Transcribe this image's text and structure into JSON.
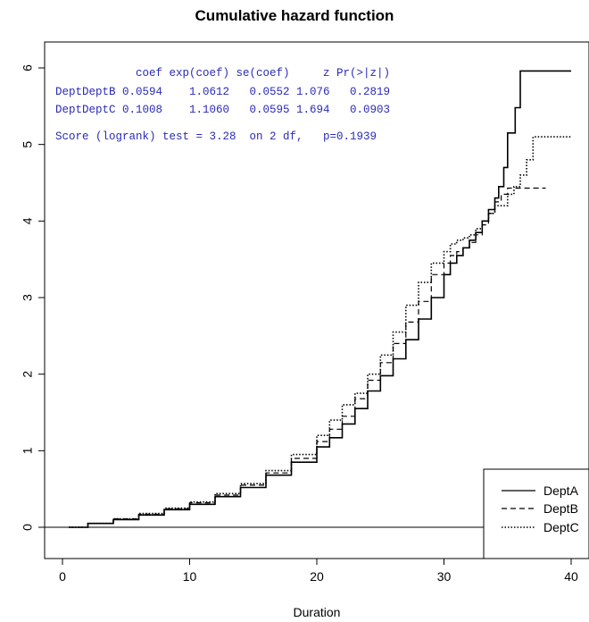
{
  "chart_data": {
    "type": "line",
    "title": "Cumulative hazard function",
    "xlabel": "Duration",
    "ylabel": "",
    "xlim": [
      0,
      40
    ],
    "ylim": [
      0,
      6
    ],
    "xticks": [
      "0",
      "10",
      "20",
      "30",
      "40"
    ],
    "yticks": [
      "0",
      "1",
      "2",
      "3",
      "4",
      "5",
      "6"
    ],
    "reference_line_y": 0,
    "series": [
      {
        "name": "DeptA",
        "line_style": "solid",
        "x": [
          0.5,
          2,
          4,
          6,
          8,
          10,
          12,
          14,
          16,
          18,
          20,
          21,
          22,
          23,
          24,
          25,
          26,
          27,
          28,
          29,
          30,
          30.5,
          31,
          31.5,
          32,
          32.5,
          33,
          33.5,
          34,
          34.3,
          34.7,
          35,
          35.6,
          36,
          40
        ],
        "y": [
          0.0,
          0.05,
          0.1,
          0.16,
          0.23,
          0.3,
          0.4,
          0.52,
          0.68,
          0.85,
          1.05,
          1.17,
          1.35,
          1.55,
          1.78,
          1.98,
          2.2,
          2.45,
          2.72,
          3.0,
          3.3,
          3.45,
          3.55,
          3.65,
          3.75,
          3.85,
          4.0,
          4.15,
          4.3,
          4.45,
          4.7,
          5.15,
          5.48,
          5.96,
          5.96
        ]
      },
      {
        "name": "DeptB",
        "line_style": "dashed",
        "x": [
          0.5,
          2,
          4,
          6,
          8,
          10,
          12,
          14,
          16,
          18,
          20,
          21,
          22,
          23,
          24,
          25,
          26,
          27,
          28,
          29,
          30,
          30.5,
          31,
          31.5,
          32,
          32.5,
          33,
          33.5,
          34,
          34.5,
          35,
          37,
          38
        ],
        "y": [
          0.0,
          0.05,
          0.11,
          0.17,
          0.24,
          0.32,
          0.42,
          0.55,
          0.71,
          0.9,
          1.12,
          1.28,
          1.45,
          1.68,
          1.92,
          2.15,
          2.4,
          2.68,
          2.95,
          3.3,
          3.45,
          3.55,
          3.6,
          3.65,
          3.72,
          3.82,
          3.95,
          4.1,
          4.25,
          4.35,
          4.43,
          4.43,
          4.43
        ]
      },
      {
        "name": "DeptC",
        "line_style": "dotted",
        "x": [
          0.5,
          2,
          4,
          6,
          8,
          10,
          12,
          14,
          16,
          18,
          20,
          21,
          22,
          23,
          24,
          25,
          26,
          27,
          28,
          29,
          30,
          30.5,
          31,
          31.5,
          32,
          32.5,
          33,
          33.5,
          34,
          35,
          35.5,
          36,
          36.5,
          37,
          40
        ],
        "y": [
          0.0,
          0.05,
          0.11,
          0.18,
          0.25,
          0.33,
          0.44,
          0.57,
          0.74,
          0.95,
          1.2,
          1.4,
          1.6,
          1.75,
          2.0,
          2.25,
          2.55,
          2.9,
          3.2,
          3.45,
          3.6,
          3.7,
          3.75,
          3.78,
          3.82,
          3.9,
          4.0,
          4.1,
          4.2,
          4.35,
          4.45,
          4.6,
          4.8,
          5.1,
          5.1
        ]
      }
    ],
    "stats_table": {
      "header": "            coef exp(coef) se(coef)     z Pr(>|z|)",
      "rows": [
        "DeptDeptB 0.0594    1.0612   0.0552 1.076   0.2819",
        "DeptDeptC 0.1008    1.1060   0.0595 1.694   0.0903"
      ],
      "score_line": "Score (logrank) test = 3.28  on 2 df,   p=0.1939"
    },
    "legend": {
      "position": "bottom-right",
      "entries": [
        "DeptA",
        "DeptB",
        "DeptC"
      ]
    },
    "grid": false
  }
}
